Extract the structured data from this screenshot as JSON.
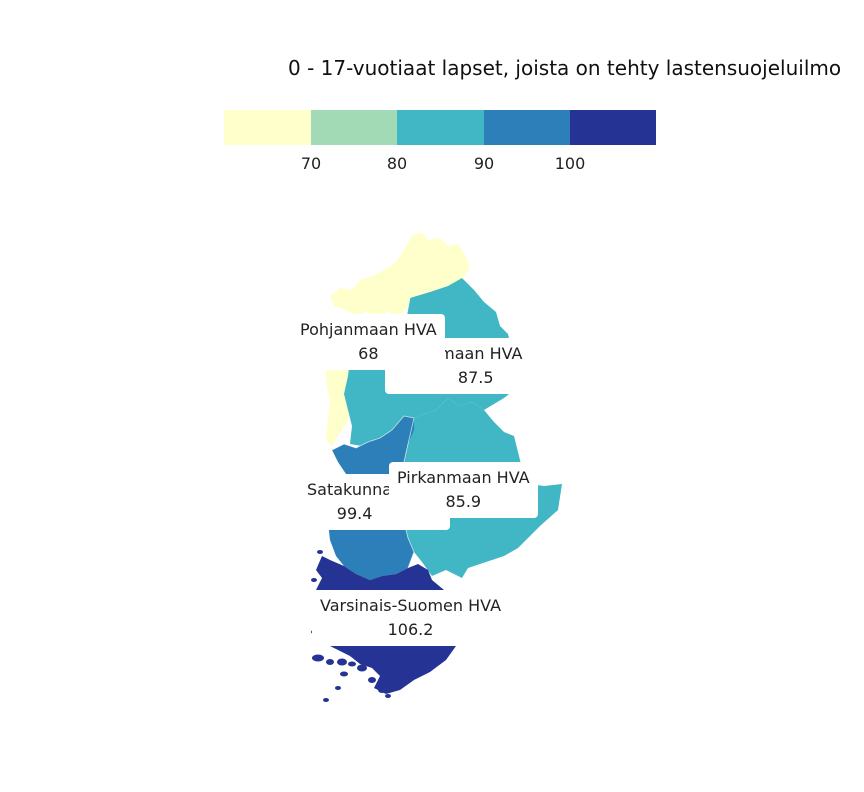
{
  "title": "0 - 17-vuotiaat lapset, joista on tehty lastensuojeluilmo",
  "legend": {
    "colors": [
      "#ffffcc",
      "#a1dab4",
      "#41b6c4",
      "#2c7fb8",
      "#253494"
    ],
    "ticks": [
      "70",
      "80",
      "90",
      "100"
    ]
  },
  "regions": [
    {
      "name": "Pohjanmaan HVA",
      "value": "68",
      "color": "#ffffcc"
    },
    {
      "name": "Etelä-Pohjanmaan HVA",
      "value": "87.5",
      "color": "#41b6c4"
    },
    {
      "name": "Satakunnan HVA",
      "value": "99.4",
      "color": "#2c7fb8"
    },
    {
      "name": "Pirkanmaan HVA",
      "value": "85.9",
      "color": "#41b6c4"
    },
    {
      "name": "Varsinais-Suomen HVA",
      "value": "106.2",
      "color": "#253494"
    }
  ],
  "labels": [
    {
      "text": "Pohjanmaan HVA",
      "value": "68"
    },
    {
      "text": "nmaan HVA",
      "value": "87.5"
    },
    {
      "text": "Satakunnan",
      "value": "99.4"
    },
    {
      "text": "Pirkanmaan HVA",
      "value": "85.9"
    },
    {
      "text": "Varsinais-Suomen HVA",
      "value": "106.2"
    }
  ]
}
